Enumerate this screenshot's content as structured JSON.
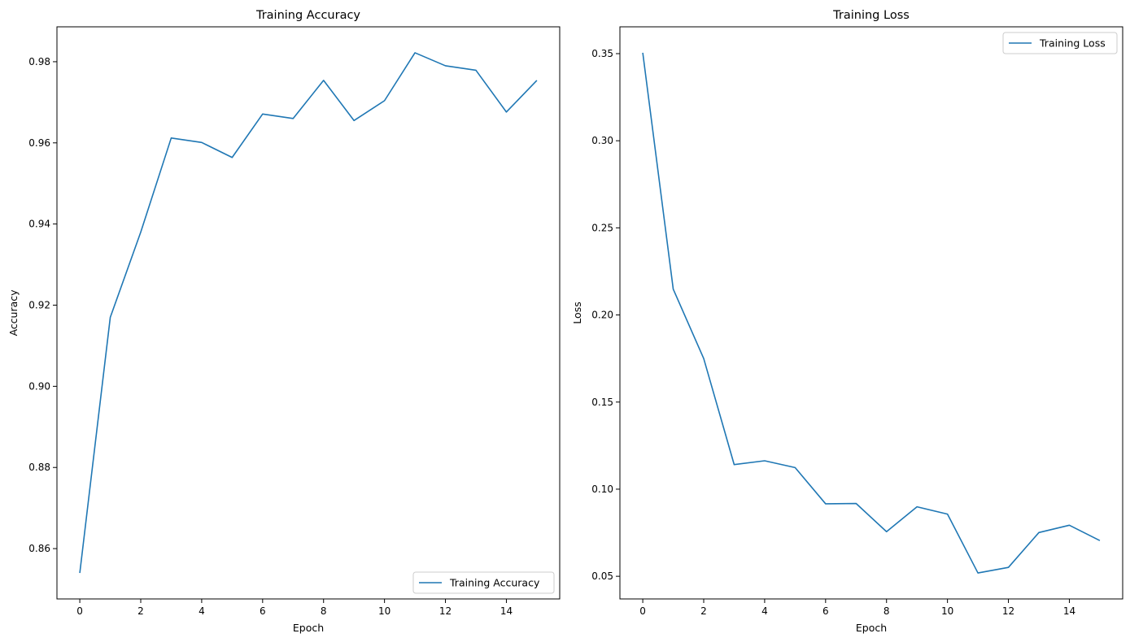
{
  "chart_data": [
    {
      "type": "line",
      "title": "Training Accuracy",
      "xlabel": "Epoch",
      "ylabel": "Accuracy",
      "x": [
        0,
        1,
        2,
        3,
        4,
        5,
        6,
        7,
        8,
        9,
        10,
        11,
        12,
        13,
        14,
        15
      ],
      "series": [
        {
          "name": "Training Accuracy",
          "color": "#1f77b4",
          "values": [
            0.854,
            0.917,
            0.938,
            0.9612,
            0.9601,
            0.9564,
            0.9671,
            0.966,
            0.9754,
            0.9655,
            0.9704,
            0.9822,
            0.979,
            0.9779,
            0.9676,
            0.9754
          ]
        }
      ],
      "xlim": [
        -0.75,
        15.75
      ],
      "ylim": [
        0.8476,
        0.9886
      ],
      "xticks": [
        0,
        2,
        4,
        6,
        8,
        10,
        12,
        14
      ],
      "yticks": [
        0.86,
        0.88,
        0.9,
        0.92,
        0.94,
        0.96,
        0.98
      ],
      "ytick_decimals": 2,
      "grid": false,
      "legend": "lower right"
    },
    {
      "type": "line",
      "title": "Training Loss",
      "xlabel": "Epoch",
      "ylabel": "Loss",
      "x": [
        0,
        1,
        2,
        3,
        4,
        5,
        6,
        7,
        8,
        9,
        10,
        11,
        12,
        13,
        14,
        15
      ],
      "series": [
        {
          "name": "Training Loss",
          "color": "#1f77b4",
          "values": [
            0.3505,
            0.2148,
            0.175,
            0.1141,
            0.1163,
            0.1124,
            0.0916,
            0.0918,
            0.0756,
            0.0899,
            0.0857,
            0.0519,
            0.0551,
            0.0751,
            0.0793,
            0.0705
          ]
        }
      ],
      "xlim": [
        -0.75,
        15.75
      ],
      "ylim": [
        0.037,
        0.3654
      ],
      "xticks": [
        0,
        2,
        4,
        6,
        8,
        10,
        12,
        14
      ],
      "yticks": [
        0.05,
        0.1,
        0.15,
        0.2,
        0.25,
        0.3,
        0.35
      ],
      "ytick_decimals": 2,
      "grid": false,
      "legend": "upper right"
    }
  ]
}
